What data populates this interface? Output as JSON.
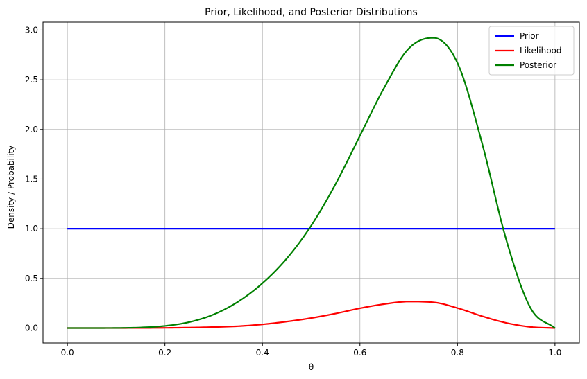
{
  "chart_data": {
    "type": "line",
    "title": "Prior, Likelihood, and Posterior Distributions",
    "xlabel": "θ",
    "ylabel": "Density / Probability",
    "xlim": [
      -0.05,
      1.05
    ],
    "ylim": [
      -0.15,
      3.08
    ],
    "xticks": [
      0.0,
      0.2,
      0.4,
      0.6,
      0.8,
      1.0
    ],
    "xtick_labels": [
      "0.0",
      "0.2",
      "0.4",
      "0.6",
      "0.8",
      "1.0"
    ],
    "yticks": [
      0.0,
      0.5,
      1.0,
      1.5,
      2.0,
      2.5,
      3.0
    ],
    "ytick_labels": [
      "0.0",
      "0.5",
      "1.0",
      "1.5",
      "2.0",
      "2.5",
      "3.0"
    ],
    "grid": true,
    "legend_position": "top-right",
    "x": [
      0.0,
      0.05,
      0.1,
      0.15,
      0.2,
      0.25,
      0.3,
      0.35,
      0.4,
      0.45,
      0.5,
      0.55,
      0.6,
      0.65,
      0.7,
      0.75,
      0.8,
      0.85,
      0.9,
      0.95,
      1.0
    ],
    "series": [
      {
        "name": "Prior",
        "color": "#0000ff",
        "values": [
          1,
          1,
          1,
          1,
          1,
          1,
          1,
          1,
          1,
          1,
          1,
          1,
          1,
          1,
          1,
          1,
          1,
          1,
          1,
          1,
          1
        ]
      },
      {
        "name": "Likelihood",
        "color": "#ff0000",
        "values": [
          0.0,
          0.0,
          0.0001,
          0.0006,
          0.002,
          0.0049,
          0.01,
          0.0188,
          0.0372,
          0.0652,
          0.1007,
          0.1461,
          0.199,
          0.2415,
          0.2668,
          0.2595,
          0.2013,
          0.1201,
          0.052,
          0.0112,
          0.0
        ]
      },
      {
        "name": "Posterior",
        "color": "#008000",
        "values": [
          0.0,
          0.0001,
          0.0009,
          0.0058,
          0.0215,
          0.0601,
          0.1368,
          0.265,
          0.4515,
          0.7011,
          1.0312,
          1.4503,
          1.9368,
          2.4227,
          2.815,
          2.923,
          2.67,
          1.87,
          0.89,
          0.2,
          0.0
        ]
      }
    ]
  }
}
